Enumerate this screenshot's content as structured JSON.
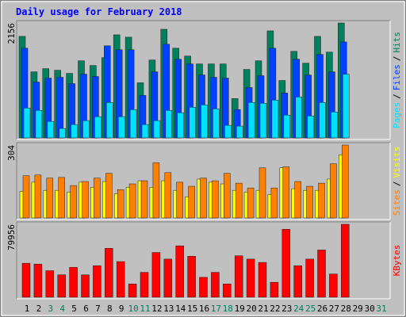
{
  "chart_data": [
    {
      "type": "bar",
      "title": "Daily usage for February 2018",
      "categories": [
        "1",
        "2",
        "3",
        "4",
        "5",
        "6",
        "7",
        "8",
        "9",
        "10",
        "11",
        "12",
        "13",
        "14",
        "15",
        "16",
        "17",
        "18",
        "19",
        "20",
        "21",
        "22",
        "23",
        "24",
        "25",
        "26",
        "27",
        "28",
        "29",
        "30",
        "31"
      ],
      "category_colors": [
        "#000000",
        "#000000",
        "#00805c",
        "#00805c",
        "#000000",
        "#000000",
        "#000000",
        "#000000",
        "#000000",
        "#00805c",
        "#00805c",
        "#000000",
        "#000000",
        "#000000",
        "#000000",
        "#000000",
        "#00805c",
        "#00805c",
        "#000000",
        "#000000",
        "#000000",
        "#000000",
        "#000000",
        "#00805c",
        "#00805c",
        "#000000",
        "#000000",
        "#000000",
        "#000000",
        "#000000",
        "#00805c"
      ],
      "separator": "/",
      "ylim": [
        0,
        2156
      ],
      "yticks": [
        2156
      ],
      "series": [
        {
          "name": "Hits",
          "color": "#00805c",
          "values": [
            1905,
            1240,
            1300,
            1270,
            1211,
            1447,
            1359,
            1506,
            1934,
            1890,
            1034,
            1462,
            2038,
            1683,
            1536,
            1388,
            1388,
            1388,
            738,
            1285,
            1447,
            2008,
            1078,
            1624,
            1403,
            1905,
            1610,
            2156,
            null,
            null,
            null
          ]
        },
        {
          "name": "Files",
          "color": "#0040ff",
          "values": [
            1683,
            1048,
            1122,
            1137,
            1019,
            1196,
            1152,
            1728,
            1654,
            1654,
            797,
            1240,
            1757,
            1477,
            1388,
            1181,
            1137,
            1122,
            532,
            945,
            1167,
            1683,
            842,
            1477,
            1181,
            1565,
            1240,
            1801,
            null,
            null,
            null
          ]
        },
        {
          "name": "Pages",
          "color": "#00e0ff",
          "values": [
            561,
            517,
            310,
            177,
            251,
            325,
            399,
            665,
            399,
            532,
            251,
            325,
            517,
            473,
            576,
            620,
            546,
            236,
            222,
            665,
            650,
            709,
            428,
            768,
            413,
            665,
            487,
            1196,
            null,
            null,
            null
          ]
        }
      ]
    },
    {
      "type": "bar",
      "separator": "/",
      "ylim": [
        0,
        304
      ],
      "yticks": [
        304
      ],
      "series": [
        {
          "name": "Visits",
          "color": "#ffff00",
          "values": [
            111,
            149,
            115,
            115,
            108,
            149,
            128,
            152,
            101,
            128,
            155,
            128,
            155,
            115,
            88,
            162,
            149,
            142,
            115,
            108,
            115,
            98,
            209,
            122,
            115,
            115,
            162,
            263,
            null,
            null,
            null
          ]
        },
        {
          "name": "Sites",
          "color": "#ff8000",
          "values": [
            176,
            179,
            166,
            169,
            135,
            152,
            166,
            186,
            118,
            142,
            155,
            230,
            189,
            149,
            132,
            166,
            155,
            186,
            145,
            125,
            209,
            125,
            213,
            152,
            132,
            145,
            226,
            304,
            null,
            null,
            null
          ]
        }
      ]
    },
    {
      "type": "bar",
      "ylim": [
        0,
        79956
      ],
      "yticks": [
        79956
      ],
      "series": [
        {
          "name": "KBytes",
          "color": "#ff0000",
          "values": [
            37252,
            36343,
            29075,
            24532,
            32709,
            24532,
            34526,
            53607,
            39069,
            14537,
            27258,
            49064,
            41795,
            56333,
            44911,
            21806,
            27258,
            14537,
            45428,
            41795,
            38161,
            16354,
            74503,
            34526,
            41795,
            51790,
            25440,
            79956,
            null,
            null,
            null
          ]
        }
      ]
    }
  ]
}
